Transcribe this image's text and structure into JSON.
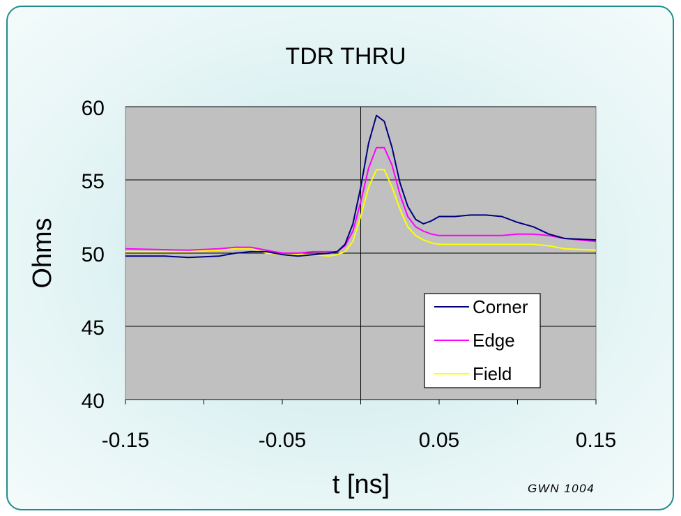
{
  "chart_data": {
    "type": "line",
    "title": "TDR THRU",
    "xlabel": "t [ns]",
    "ylabel": "Ohms",
    "xlim": [
      -0.15,
      0.15
    ],
    "ylim": [
      40,
      60
    ],
    "x_ticks": [
      -0.15,
      -0.05,
      0.05,
      0.15
    ],
    "x_tick_labels": [
      "-0.15",
      "-0.05",
      "0.05",
      "0.15"
    ],
    "x_minor_ticks": [
      -0.15,
      -0.1,
      -0.05,
      0,
      0.05,
      0.1,
      0.15
    ],
    "y_ticks": [
      40,
      45,
      50,
      55,
      60
    ],
    "y_tick_labels": [
      "40",
      "45",
      "50",
      "55",
      "60"
    ],
    "grid": "horizontal",
    "legend_position": "bottom-right",
    "plot_background": "#c0c0c0",
    "annotation": "GWN 1004",
    "series": [
      {
        "name": "Corner",
        "color": "#00007f",
        "x": [
          -0.15,
          -0.125,
          -0.11,
          -0.09,
          -0.08,
          -0.07,
          -0.06,
          -0.05,
          -0.04,
          -0.03,
          -0.02,
          -0.015,
          -0.01,
          -0.005,
          0,
          0.005,
          0.01,
          0.015,
          0.02,
          0.025,
          0.03,
          0.035,
          0.04,
          0.045,
          0.05,
          0.06,
          0.07,
          0.08,
          0.09,
          0.1,
          0.11,
          0.12,
          0.13,
          0.15
        ],
        "y": [
          49.8,
          49.8,
          49.7,
          49.8,
          50.0,
          50.1,
          50.1,
          49.9,
          49.8,
          49.9,
          50.0,
          50.1,
          50.6,
          52.0,
          54.5,
          57.5,
          59.4,
          59.0,
          57.2,
          54.8,
          53.2,
          52.3,
          52.0,
          52.2,
          52.5,
          52.5,
          52.6,
          52.6,
          52.5,
          52.1,
          51.8,
          51.3,
          51.0,
          50.9
        ]
      },
      {
        "name": "Edge",
        "color": "#ff00ff",
        "x": [
          -0.15,
          -0.11,
          -0.09,
          -0.08,
          -0.07,
          -0.06,
          -0.05,
          -0.04,
          -0.03,
          -0.02,
          -0.015,
          -0.01,
          -0.005,
          0,
          0.005,
          0.01,
          0.015,
          0.02,
          0.025,
          0.03,
          0.035,
          0.04,
          0.045,
          0.05,
          0.06,
          0.07,
          0.08,
          0.09,
          0.1,
          0.11,
          0.12,
          0.13,
          0.15
        ],
        "y": [
          50.3,
          50.2,
          50.3,
          50.4,
          50.4,
          50.2,
          50.0,
          50.0,
          50.1,
          50.1,
          50.1,
          50.5,
          51.5,
          53.5,
          55.8,
          57.2,
          57.2,
          56.0,
          54.0,
          52.5,
          51.8,
          51.5,
          51.3,
          51.2,
          51.2,
          51.2,
          51.2,
          51.2,
          51.3,
          51.3,
          51.2,
          51.0,
          50.8
        ]
      },
      {
        "name": "Field",
        "color": "#ffff00",
        "x": [
          -0.15,
          -0.11,
          -0.09,
          -0.08,
          -0.07,
          -0.06,
          -0.05,
          -0.04,
          -0.03,
          -0.02,
          -0.015,
          -0.01,
          -0.005,
          0,
          0.005,
          0.01,
          0.015,
          0.02,
          0.025,
          0.03,
          0.035,
          0.04,
          0.045,
          0.05,
          0.06,
          0.07,
          0.08,
          0.09,
          0.1,
          0.11,
          0.12,
          0.13,
          0.15
        ],
        "y": [
          50.1,
          50.1,
          50.2,
          50.3,
          50.3,
          50.0,
          49.9,
          49.9,
          49.9,
          49.8,
          49.9,
          50.1,
          50.8,
          52.5,
          54.5,
          55.7,
          55.7,
          54.5,
          53.0,
          51.8,
          51.2,
          50.9,
          50.7,
          50.6,
          50.6,
          50.6,
          50.6,
          50.6,
          50.6,
          50.6,
          50.5,
          50.3,
          50.2
        ]
      }
    ]
  }
}
